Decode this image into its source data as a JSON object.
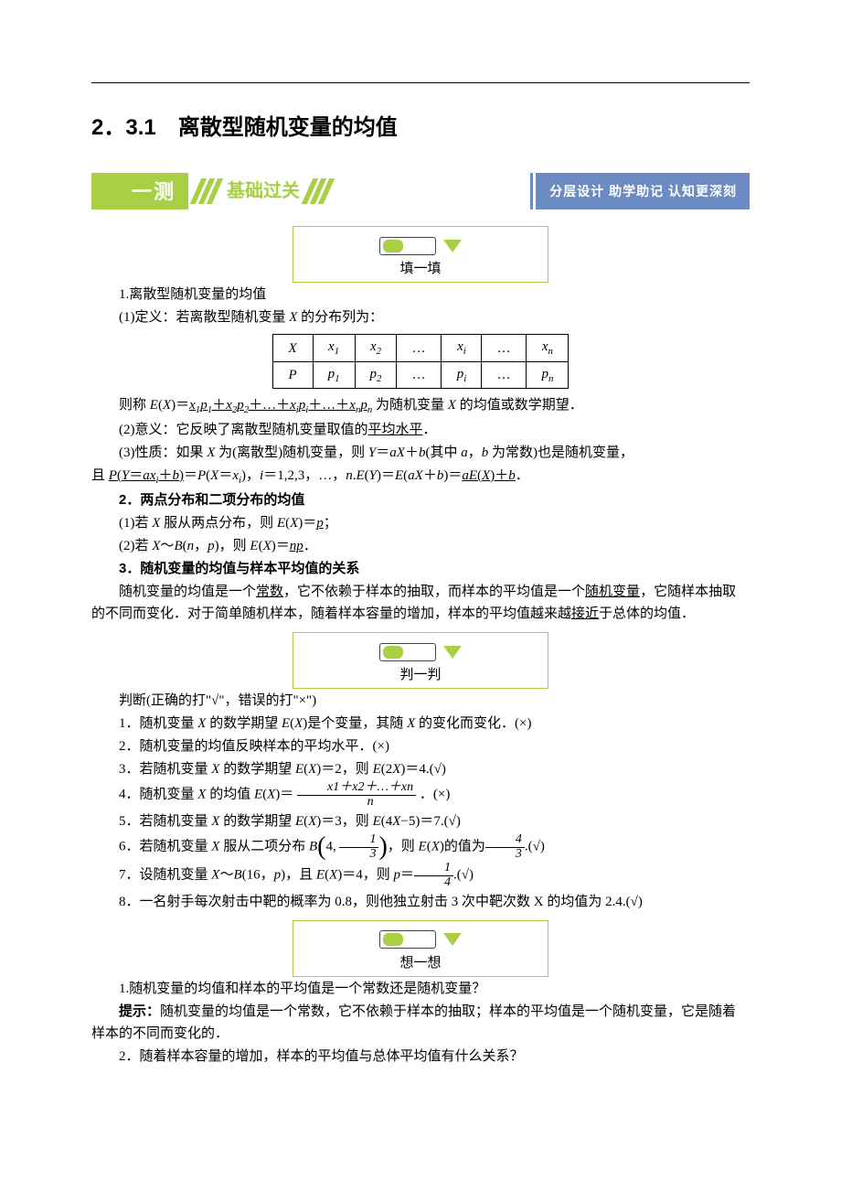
{
  "title": "2．3.1　离散型随机变量的均值",
  "banner": {
    "tab": "一测",
    "mid": "基础过关",
    "right": "分层设计  助学助记  认知更深刻"
  },
  "callouts": {
    "fill": "填一填",
    "judge": "判一判",
    "think": "想一想"
  },
  "s1": {
    "head": "1.离散型随机变量的均值",
    "p1a": "(1)定义：若离散型随机变量 ",
    "p1b": " 的分布列为：",
    "table": {
      "r1": {
        "c0": "X",
        "c1": "x",
        "s1": "1",
        "c2": "x",
        "s2": "2",
        "c3": "…",
        "c4": "x",
        "s4": "i",
        "c5": "…",
        "c6": "x",
        "s6": "n"
      },
      "r2": {
        "c0": "P",
        "c1": "p",
        "s1": "1",
        "c2": "p",
        "s2": "2",
        "c3": "…",
        "c4": "p",
        "s4": "i",
        "c5": "…",
        "c6": "p",
        "s6": "n"
      }
    },
    "p2a": "则称 ",
    "p2formula": "E(X)＝",
    "p2u1": "x",
    "p2u2": "p",
    "p2plus": "＋",
    "p2dots": "…",
    "p2b": " 为随机变量 ",
    "p2c": " 的均值或数学期望．",
    "p3a": "(2)意义：它反映了离散型随机变量取值的",
    "p3u": "平均水平",
    "p3b": "．",
    "p4a": "(3)性质：如果 ",
    "p4b": " 为(离散型)随机变量，则 ",
    "p4c": "(其中 ",
    "p4d": "，",
    "p4e": " 为常数)也是随机变量，",
    "p5a": "且 ",
    "p5b": "，",
    "p5c": "＝1,2,3，…，",
    "p5d": "．"
  },
  "s2": {
    "head": "2．两点分布和二项分布的均值",
    "p1a": "(1)若 ",
    "p1b": " 服从两点分布，则 ",
    "p1c": "；",
    "p2a": "(2)若 ",
    "p2b": "，则 ",
    "p2c": "．"
  },
  "s3": {
    "head": "3．随机变量的均值与样本平均值的关系",
    "p1a": "随机变量的均值是一个",
    "p1u1": "常数",
    "p1b": "，它不依赖于样本的抽取，而样本的平均值是一个",
    "p1u2": "随机变量",
    "p1c": "，它随样本抽取的不同而变化．对于简单随机样本，随着样本容量的增加，样本的平均值越来越",
    "p1u3": "接近",
    "p1d": "于总体的均值．"
  },
  "judge": {
    "intro": "判断(正确的打\"√\"，错误的打\"×\")",
    "q1a": "1．随机变量 ",
    "q1b": " 的数学期望 ",
    "q1c": "是个变量，其随 ",
    "q1d": " 的变化而变化．(×)",
    "q2": "2．随机变量的均值反映样本的平均水平．(×)",
    "q3a": "3．若随机变量 ",
    "q3b": " 的数学期望 ",
    "q3c": "＝2，则 ",
    "q3d": "＝4.(√)",
    "q4a": "4．随机变量 ",
    "q4b": " 的均值 ",
    "q4c": "．(×)",
    "frac4": {
      "num": "x1＋x2＋…＋xn",
      "den": "n"
    },
    "q5a": "5．若随机变量 ",
    "q5b": " 的数学期望 ",
    "q5c": "＝3，则 ",
    "q5d": "＝7.(√)",
    "q6a": "6．若随机变量 ",
    "q6b": " 服从二项分布 ",
    "q6c": "，则 ",
    "q6d": "的值为",
    "q6e": ".(√)",
    "frac6a": {
      "num": "1",
      "den": "3"
    },
    "frac6b": {
      "num": "4",
      "den": "3"
    },
    "q7a": "7．设随机变量 ",
    "q7b": "，且 ",
    "q7c": "＝4，则 ",
    "q7d": ".(√)",
    "frac7": {
      "num": "1",
      "den": "4"
    },
    "q8": "8．一名射手每次射击中靶的概率为 0.8，则他独立射击 3 次中靶次数 X 的均值为 2.4.(√)"
  },
  "think": {
    "q1": "1.随机变量的均值和样本的平均值是一个常数还是随机变量？",
    "hint_label": "提示：",
    "a1": "随机变量的均值是一个常数，它不依赖于样本的抽取；样本的平均值是一个随机变量，它是随着样本的不同而变化的．",
    "q2": "2．随着样本容量的增加，样本的平均值与总体平均值有什么关系？"
  }
}
